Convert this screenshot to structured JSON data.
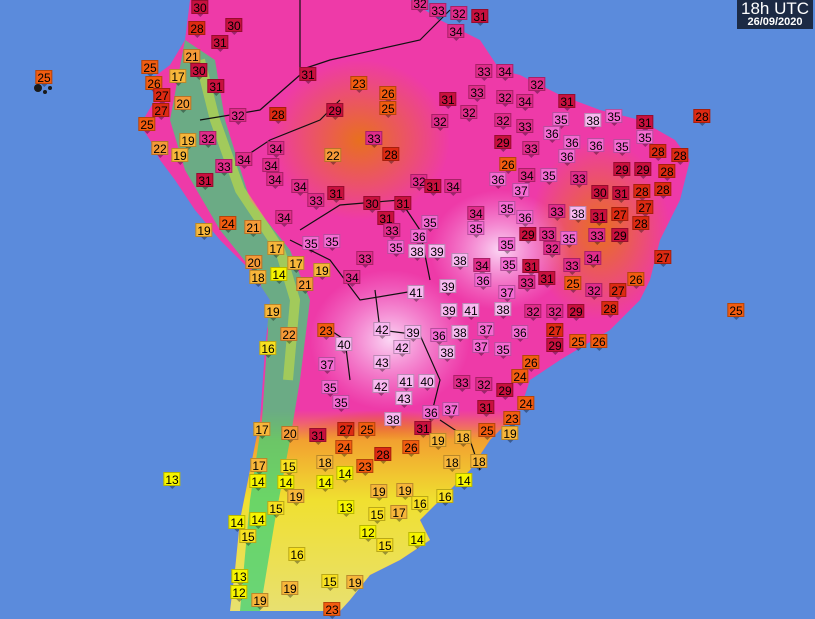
{
  "overlay": {
    "time": "18h UTC",
    "date": "26/09/2020"
  },
  "stations": [
    {
      "t": "30"
    },
    {
      "t": "30"
    },
    {
      "t": "28"
    },
    {
      "t": "31"
    },
    {
      "t": "21"
    },
    {
      "t": "25"
    },
    {
      "t": "25"
    },
    {
      "t": "17"
    },
    {
      "t": "30"
    },
    {
      "t": "26"
    },
    {
      "t": "31"
    },
    {
      "t": "27"
    },
    {
      "t": "20"
    },
    {
      "t": "27"
    },
    {
      "t": "25"
    },
    {
      "t": "32"
    },
    {
      "t": "28"
    },
    {
      "t": "31"
    },
    {
      "t": "23"
    },
    {
      "t": "26"
    },
    {
      "t": "25"
    },
    {
      "t": "29"
    },
    {
      "t": "32"
    },
    {
      "t": "19"
    },
    {
      "t": "22"
    },
    {
      "t": "19"
    },
    {
      "t": "34"
    },
    {
      "t": "34"
    },
    {
      "t": "34"
    },
    {
      "t": "33"
    },
    {
      "t": "31"
    },
    {
      "t": "34"
    },
    {
      "t": "33"
    },
    {
      "t": "22"
    },
    {
      "t": "28"
    },
    {
      "t": "34"
    },
    {
      "t": "33"
    },
    {
      "t": "31"
    },
    {
      "t": "30"
    },
    {
      "t": "31"
    },
    {
      "t": "31"
    },
    {
      "t": "33"
    },
    {
      "t": "35"
    },
    {
      "t": "34"
    },
    {
      "t": "24"
    },
    {
      "t": "21"
    },
    {
      "t": "19"
    },
    {
      "t": "35"
    },
    {
      "t": "35"
    },
    {
      "t": "17"
    },
    {
      "t": "20"
    },
    {
      "t": "17"
    },
    {
      "t": "18"
    },
    {
      "t": "14"
    },
    {
      "t": "19"
    },
    {
      "t": "21"
    },
    {
      "t": "33"
    },
    {
      "t": "34"
    },
    {
      "t": "32"
    },
    {
      "t": "33"
    },
    {
      "t": "32"
    },
    {
      "t": "31"
    },
    {
      "t": "34"
    },
    {
      "t": "33"
    },
    {
      "t": "34"
    },
    {
      "t": "32"
    },
    {
      "t": "33"
    },
    {
      "t": "31"
    },
    {
      "t": "32"
    },
    {
      "t": "34"
    },
    {
      "t": "31"
    },
    {
      "t": "32"
    },
    {
      "t": "32"
    },
    {
      "t": "32"
    },
    {
      "t": "33"
    },
    {
      "t": "35"
    },
    {
      "t": "38"
    },
    {
      "t": "35"
    },
    {
      "t": "31"
    },
    {
      "t": "35"
    },
    {
      "t": "28"
    },
    {
      "t": "36"
    },
    {
      "t": "36"
    },
    {
      "t": "36"
    },
    {
      "t": "35"
    },
    {
      "t": "29"
    },
    {
      "t": "33"
    },
    {
      "t": "28"
    },
    {
      "t": "28"
    },
    {
      "t": "36"
    },
    {
      "t": "26"
    },
    {
      "t": "34"
    },
    {
      "t": "35"
    },
    {
      "t": "33"
    },
    {
      "t": "29"
    },
    {
      "t": "29"
    },
    {
      "t": "28"
    },
    {
      "t": "36"
    },
    {
      "t": "37"
    },
    {
      "t": "32"
    },
    {
      "t": "31"
    },
    {
      "t": "34"
    },
    {
      "t": "30"
    },
    {
      "t": "31"
    },
    {
      "t": "28"
    },
    {
      "t": "28"
    },
    {
      "t": "35"
    },
    {
      "t": "36"
    },
    {
      "t": "33"
    },
    {
      "t": "38"
    },
    {
      "t": "31"
    },
    {
      "t": "27"
    },
    {
      "t": "27"
    },
    {
      "t": "28"
    },
    {
      "t": "34"
    },
    {
      "t": "35"
    },
    {
      "t": "35"
    },
    {
      "t": "36"
    },
    {
      "t": "38"
    },
    {
      "t": "39"
    },
    {
      "t": "29"
    },
    {
      "t": "33"
    },
    {
      "t": "35"
    },
    {
      "t": "33"
    },
    {
      "t": "29"
    },
    {
      "t": "35"
    },
    {
      "t": "32"
    },
    {
      "t": "38"
    },
    {
      "t": "34"
    },
    {
      "t": "36"
    },
    {
      "t": "35"
    },
    {
      "t": "31"
    },
    {
      "t": "33"
    },
    {
      "t": "34"
    },
    {
      "t": "27"
    },
    {
      "t": "39"
    },
    {
      "t": "41"
    },
    {
      "t": "37"
    },
    {
      "t": "33"
    },
    {
      "t": "31"
    },
    {
      "t": "25"
    },
    {
      "t": "32"
    },
    {
      "t": "27"
    },
    {
      "t": "26"
    },
    {
      "t": "28"
    },
    {
      "t": "25"
    },
    {
      "t": "19"
    },
    {
      "t": "22"
    },
    {
      "t": "16"
    },
    {
      "t": "23"
    },
    {
      "t": "40"
    },
    {
      "t": "42"
    },
    {
      "t": "39"
    },
    {
      "t": "36"
    },
    {
      "t": "38"
    },
    {
      "t": "37"
    },
    {
      "t": "36"
    },
    {
      "t": "38"
    },
    {
      "t": "37"
    },
    {
      "t": "35"
    },
    {
      "t": "39"
    },
    {
      "t": "41"
    },
    {
      "t": "38"
    },
    {
      "t": "32"
    },
    {
      "t": "32"
    },
    {
      "t": "29"
    },
    {
      "t": "27"
    },
    {
      "t": "29"
    },
    {
      "t": "25"
    },
    {
      "t": "26"
    },
    {
      "t": "42"
    },
    {
      "t": "37"
    },
    {
      "t": "43"
    },
    {
      "t": "26"
    },
    {
      "t": "41"
    },
    {
      "t": "40"
    },
    {
      "t": "33"
    },
    {
      "t": "32"
    },
    {
      "t": "24"
    },
    {
      "t": "29"
    },
    {
      "t": "24"
    },
    {
      "t": "42"
    },
    {
      "t": "43"
    },
    {
      "t": "35"
    },
    {
      "t": "35"
    },
    {
      "t": "36"
    },
    {
      "t": "37"
    },
    {
      "t": "31"
    },
    {
      "t": "23"
    },
    {
      "t": "38"
    },
    {
      "t": "31"
    },
    {
      "t": "27"
    },
    {
      "t": "25"
    },
    {
      "t": "20"
    },
    {
      "t": "17"
    },
    {
      "t": "31"
    },
    {
      "t": "26"
    },
    {
      "t": "19"
    },
    {
      "t": "18"
    },
    {
      "t": "25"
    },
    {
      "t": "19"
    },
    {
      "t": "18"
    },
    {
      "t": "18"
    },
    {
      "t": "24"
    },
    {
      "t": "28"
    },
    {
      "t": "18"
    },
    {
      "t": "23"
    },
    {
      "t": "17"
    },
    {
      "t": "15"
    },
    {
      "t": "14"
    },
    {
      "t": "14"
    },
    {
      "t": "14"
    },
    {
      "t": "14"
    },
    {
      "t": "13"
    },
    {
      "t": "19"
    },
    {
      "t": "19"
    },
    {
      "t": "19"
    },
    {
      "t": "15"
    },
    {
      "t": "13"
    },
    {
      "t": "16"
    },
    {
      "t": "16"
    },
    {
      "t": "14"
    },
    {
      "t": "17"
    },
    {
      "t": "15"
    },
    {
      "t": "14"
    },
    {
      "t": "14"
    },
    {
      "t": "15"
    },
    {
      "t": "12"
    },
    {
      "t": "15"
    },
    {
      "t": "14"
    },
    {
      "t": "16"
    },
    {
      "t": "13"
    },
    {
      "t": "12"
    },
    {
      "t": "19"
    },
    {
      "t": "19"
    },
    {
      "t": "15"
    },
    {
      "t": "19"
    },
    {
      "t": "23"
    }
  ]
}
